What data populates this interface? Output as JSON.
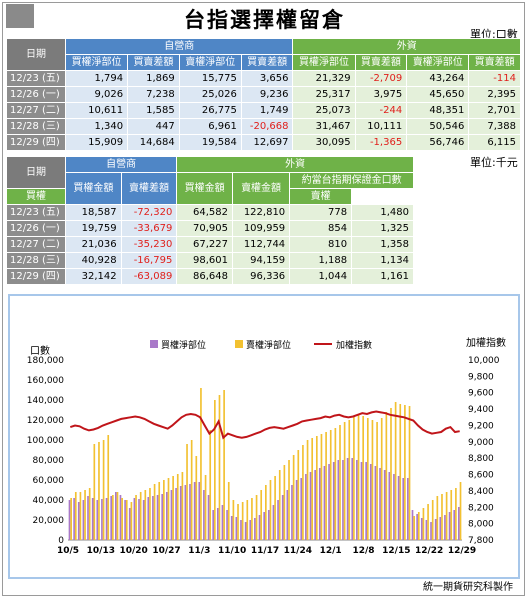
{
  "title": "台指選擇權留倉",
  "unit1": "單位:口數",
  "unit2": "單位:千元",
  "table1": {
    "date_header": "日期",
    "group1": "自營商",
    "group2": "外資",
    "columns": [
      "買權淨部位",
      "買賣差額",
      "賣權淨部位",
      "買賣差額",
      "買權淨部位",
      "買賣差額",
      "賣權淨部位",
      "買賣差額"
    ],
    "rows": [
      {
        "date": "12/23 (五)",
        "v": [
          "1,794",
          "1,869",
          "15,775",
          "3,656",
          "21,329",
          "-2,709",
          "43,264",
          "-114"
        ]
      },
      {
        "date": "12/26 (一)",
        "v": [
          "9,026",
          "7,238",
          "25,026",
          "9,236",
          "25,317",
          "3,975",
          "45,650",
          "2,395"
        ]
      },
      {
        "date": "12/27 (二)",
        "v": [
          "10,611",
          "1,585",
          "26,775",
          "1,749",
          "25,073",
          "-244",
          "48,351",
          "2,701"
        ]
      },
      {
        "date": "12/28 (三)",
        "v": [
          "1,340",
          "447",
          "6,961",
          "-20,668",
          "31,467",
          "10,111",
          "50,546",
          "7,388"
        ]
      },
      {
        "date": "12/29 (四)",
        "v": [
          "15,909",
          "14,684",
          "19,584",
          "12,697",
          "30,095",
          "-1,365",
          "56,746",
          "6,115"
        ]
      }
    ]
  },
  "table2": {
    "date_header": "日期",
    "group1": "自營商",
    "group2": "外資",
    "subgroup": "約當台指期保證金口數",
    "columns": [
      "買權金額",
      "賣權差額",
      "買權金額",
      "賣權金額",
      "買權",
      "賣權"
    ],
    "rows": [
      {
        "date": "12/23 (五)",
        "v": [
          "18,587",
          "-72,320",
          "64,582",
          "122,810",
          "778",
          "1,480"
        ]
      },
      {
        "date": "12/26 (一)",
        "v": [
          "19,759",
          "-33,679",
          "70,905",
          "109,959",
          "854",
          "1,325"
        ]
      },
      {
        "date": "12/27 (二)",
        "v": [
          "21,036",
          "-35,230",
          "67,227",
          "112,744",
          "810",
          "1,358"
        ]
      },
      {
        "date": "12/28 (三)",
        "v": [
          "40,928",
          "-16,795",
          "98,601",
          "94,159",
          "1,188",
          "1,134"
        ]
      },
      {
        "date": "12/29 (四)",
        "v": [
          "32,142",
          "-63,089",
          "86,648",
          "96,336",
          "1,044",
          "1,161"
        ]
      }
    ]
  },
  "chart_data": {
    "type": "bar",
    "ylabel_left": "口數",
    "ylabel_right": "加權指數",
    "ylim_left": [
      0,
      180000
    ],
    "ylim_right": [
      7800,
      10000
    ],
    "yticks_left": [
      "0",
      "20,000",
      "40,000",
      "60,000",
      "80,000",
      "100,000",
      "120,000",
      "140,000",
      "160,000",
      "180,000"
    ],
    "yticks_right": [
      "7,800",
      "8,000",
      "8,200",
      "8,400",
      "8,600",
      "8,800",
      "9,000",
      "9,200",
      "9,400",
      "9,600",
      "9,800",
      "10,000"
    ],
    "x_tick_labels": [
      "10/5",
      "10/13",
      "10/20",
      "10/27",
      "11/3",
      "11/10",
      "11/17",
      "11/24",
      "12/1",
      "12/8",
      "12/15",
      "12/22",
      "12/29"
    ],
    "legend": [
      "買權淨部位",
      "賣權淨部位",
      "加權指數"
    ],
    "colors": {
      "call": "#a979c9",
      "put": "#f2c131",
      "index": "#c0151a"
    },
    "series": [
      {
        "name": "買權淨部位",
        "values": [
          40000,
          42000,
          38000,
          40000,
          44000,
          42000,
          40000,
          41000,
          42000,
          44000,
          48000,
          45000,
          40000,
          32000,
          42000,
          41000,
          40000,
          43000,
          44000,
          45000,
          46000,
          48000,
          50000,
          52000,
          54000,
          55000,
          56000,
          58000,
          58000,
          50000,
          45000,
          30000,
          32000,
          35000,
          30000,
          24000,
          23000,
          20000,
          18000,
          20000,
          22000,
          25000,
          28000,
          30000,
          35000,
          40000,
          45000,
          50000,
          55000,
          60000,
          62000,
          66000,
          68000,
          70000,
          72000,
          74000,
          76000,
          78000,
          80000,
          80000,
          82000,
          82000,
          80000,
          78000,
          78000,
          76000,
          74000,
          72000,
          70000,
          68000,
          66000,
          64000,
          62000,
          62000,
          30000,
          26000,
          22000,
          20000,
          18000,
          21000,
          23000,
          25000,
          28000,
          30000,
          33000
        ]
      },
      {
        "name": "賣權淨部位",
        "values": [
          42000,
          48000,
          48000,
          50000,
          52000,
          96000,
          98000,
          100000,
          105000,
          45000,
          48000,
          42000,
          40000,
          38000,
          45000,
          48000,
          50000,
          52000,
          56000,
          58000,
          60000,
          62000,
          64000,
          66000,
          68000,
          96000,
          100000,
          84000,
          152000,
          65000,
          110000,
          140000,
          145000,
          150000,
          58000,
          40000,
          36000,
          38000,
          40000,
          42000,
          45000,
          50000,
          55000,
          60000,
          64000,
          70000,
          75000,
          80000,
          85000,
          90000,
          95000,
          100000,
          102000,
          104000,
          106000,
          108000,
          110000,
          112000,
          115000,
          118000,
          120000,
          124000,
          126000,
          124000,
          122000,
          120000,
          118000,
          122000,
          128000,
          132000,
          138000,
          136000,
          135000,
          134000,
          24000,
          28000,
          32000,
          36000,
          40000,
          44000,
          46000,
          48000,
          50000,
          52000,
          58000
        ]
      },
      {
        "name": "加權指數",
        "values": [
          9180,
          9200,
          9190,
          9160,
          9140,
          9150,
          9170,
          9200,
          9220,
          9240,
          9260,
          9280,
          9290,
          9300,
          9310,
          9300,
          9280,
          9250,
          9220,
          9200,
          9180,
          9160,
          9200,
          9250,
          9300,
          9330,
          9340,
          9330,
          9300,
          9200,
          9100,
          9150,
          9250,
          9050,
          9100,
          9080,
          9060,
          9050,
          9060,
          9080,
          9100,
          9120,
          9150,
          9170,
          9180,
          9170,
          9160,
          9180,
          9200,
          9220,
          9250,
          9260,
          9270,
          9280,
          9290,
          9310,
          9300,
          9320,
          9330,
          9310,
          9300,
          9310,
          9330,
          9350,
          9340,
          9360,
          9370,
          9360,
          9350,
          9330,
          9320,
          9310,
          9300,
          9280,
          9260,
          9200,
          9150,
          9120,
          9100,
          9110,
          9120,
          9160,
          9180,
          9120,
          9130
        ]
      }
    ]
  },
  "footer": "統一期貨研究科製作"
}
